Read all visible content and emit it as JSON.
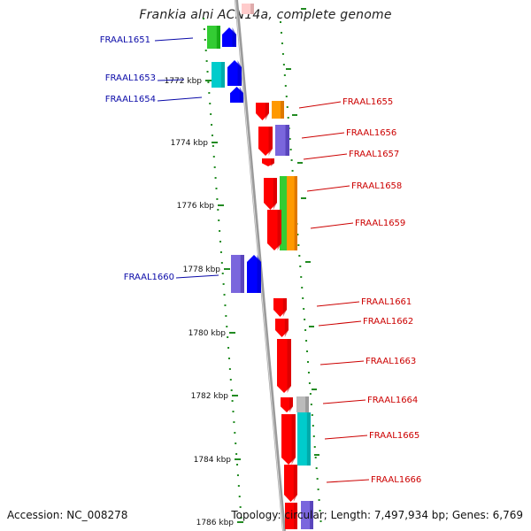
{
  "title": "Frankia alni ACN14a, complete genome",
  "accession_text": "Accession: NC_008278",
  "topology_text": "Topology: circular; Length: 7,497,934 bp; Genes: 6,769",
  "colors": {
    "backbone": "#8a8a8a",
    "tick": "#228b22",
    "label_reverse": "#0a0aa8",
    "label_forward": "#cc0000",
    "red": "#ff0000",
    "blue": "#0000ff",
    "green": "#33cc33",
    "cyan": "#00cccc",
    "orange": "#ff9900",
    "purple": "#7a66dd",
    "gray": "#bbbbbb",
    "pink": "#ffcccc"
  },
  "ruler": {
    "ticks": [
      {
        "label": "1772 kbp"
      },
      {
        "label": "1774 kbp"
      },
      {
        "label": "1776 kbp"
      },
      {
        "label": "1778 kbp"
      },
      {
        "label": "1780 kbp"
      },
      {
        "label": "1782 kbp"
      },
      {
        "label": "1784 kbp"
      },
      {
        "label": "1786 kbp"
      }
    ]
  },
  "genes": {
    "reverse_labels": [
      {
        "name": "FRAAL1651"
      },
      {
        "name": "FRAAL1653"
      },
      {
        "name": "FRAAL1654"
      },
      {
        "name": "FRAAL1660"
      }
    ],
    "forward_labels": [
      {
        "name": "FRAAL1655"
      },
      {
        "name": "FRAAL1656"
      },
      {
        "name": "FRAAL1657"
      },
      {
        "name": "FRAAL1658"
      },
      {
        "name": "FRAAL1659"
      },
      {
        "name": "FRAAL1661"
      },
      {
        "name": "FRAAL1662"
      },
      {
        "name": "FRAAL1663"
      },
      {
        "name": "FRAAL1664"
      },
      {
        "name": "FRAAL1665"
      },
      {
        "name": "FRAAL1666"
      }
    ]
  }
}
